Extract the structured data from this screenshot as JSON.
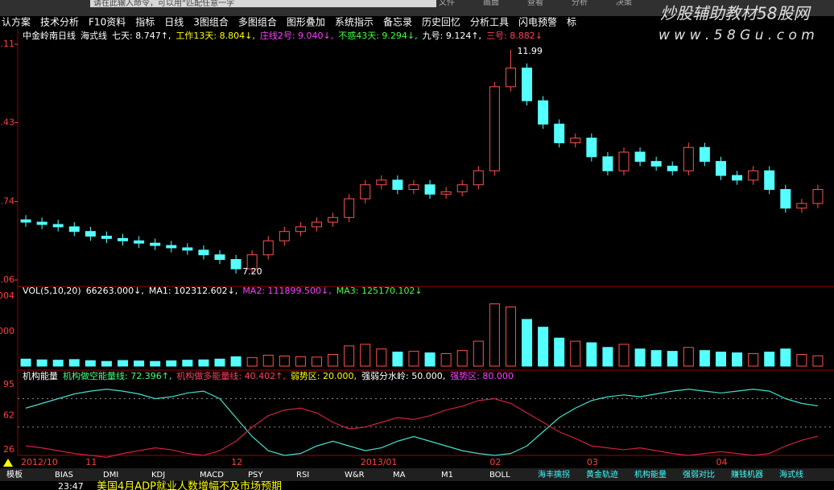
{
  "toolbar": [
    "认方案",
    "技术分析",
    "F10资料",
    "指标",
    "日线",
    "3图组合",
    "多图组合",
    "图形叠加",
    "系统指示",
    "备忘录",
    "历史回忆",
    "分析工具",
    "闪电预警",
    "标"
  ],
  "search": "请在此输入命令，可以用“匹配任意一字",
  "menu_right": [
    "文件",
    "画面",
    "查看",
    "分析",
    "决策"
  ],
  "watermark": {
    "title": "炒股辅助教材58股网",
    "url": "w w w . 5 8 G u . c o m"
  },
  "price_panel": {
    "type": "candlestick",
    "header": [
      {
        "text": "中金岭南日线",
        "color": "#ffffff"
      },
      {
        "text": "海式线",
        "color": "#ffffff"
      },
      {
        "text": "七天: 8.747↑,",
        "color": "#ffffff"
      },
      {
        "text": "工作13天: 8.804↓,",
        "color": "#ffff00"
      },
      {
        "text": "庄线2号: 9.040↓,",
        "color": "#ff40ff"
      },
      {
        "text": "不惑43天: 9.294↓,",
        "color": "#40ff40"
      },
      {
        "text": "九号: 9.124↑,",
        "color": "#ffffff"
      },
      {
        "text": "三号: 8.882↓",
        "color": "#ff4060"
      }
    ],
    "categories": [
      "2012/10",
      null,
      null,
      null,
      "11",
      null,
      null,
      null,
      null,
      null,
      null,
      null,
      null,
      "12",
      null,
      null,
      null,
      null,
      null,
      null,
      null,
      "2013/01",
      null,
      null,
      null,
      null,
      null,
      null,
      null,
      "02",
      null,
      null,
      null,
      null,
      null,
      "03",
      null,
      null,
      null,
      null,
      null,
      null,
      null,
      "04",
      null,
      null,
      null,
      null,
      null,
      null
    ],
    "open": [
      8.35,
      8.3,
      8.25,
      8.2,
      8.1,
      8.0,
      7.95,
      7.9,
      7.85,
      7.8,
      7.75,
      7.7,
      7.6,
      7.5,
      7.3,
      7.6,
      7.9,
      8.1,
      8.2,
      8.3,
      8.4,
      8.8,
      9.1,
      9.2,
      9.0,
      9.1,
      8.9,
      8.95,
      9.1,
      9.4,
      11.2,
      11.6,
      10.9,
      10.4,
      10.0,
      10.1,
      9.7,
      9.4,
      9.8,
      9.6,
      9.5,
      9.4,
      9.9,
      9.6,
      9.3,
      9.2,
      9.4,
      9.0,
      8.6,
      8.7
    ],
    "high": [
      8.45,
      8.4,
      8.35,
      8.3,
      8.2,
      8.1,
      8.05,
      8.0,
      7.95,
      7.9,
      7.85,
      7.8,
      7.7,
      7.6,
      7.7,
      8.0,
      8.2,
      8.3,
      8.4,
      8.5,
      8.9,
      9.2,
      9.3,
      9.3,
      9.2,
      9.2,
      9.05,
      9.2,
      9.5,
      11.3,
      11.99,
      11.7,
      11.0,
      10.5,
      10.2,
      10.2,
      9.8,
      9.9,
      9.9,
      9.7,
      9.6,
      10.0,
      10.0,
      9.7,
      9.4,
      9.5,
      9.5,
      9.1,
      8.8,
      9.1
    ],
    "low": [
      8.2,
      8.15,
      8.1,
      8.0,
      7.9,
      7.85,
      7.8,
      7.75,
      7.7,
      7.65,
      7.6,
      7.5,
      7.4,
      7.2,
      7.2,
      7.5,
      7.8,
      8.0,
      8.1,
      8.2,
      8.3,
      8.7,
      9.0,
      8.9,
      8.9,
      8.8,
      8.8,
      8.85,
      9.0,
      9.3,
      11.1,
      10.8,
      10.3,
      9.9,
      9.9,
      9.6,
      9.3,
      9.3,
      9.5,
      9.4,
      9.3,
      9.3,
      9.5,
      9.2,
      9.1,
      9.1,
      8.9,
      8.5,
      8.5,
      8.6
    ],
    "close": [
      8.3,
      8.25,
      8.2,
      8.1,
      8.0,
      7.95,
      7.9,
      7.85,
      7.8,
      7.75,
      7.7,
      7.6,
      7.5,
      7.3,
      7.6,
      7.9,
      8.1,
      8.2,
      8.3,
      8.4,
      8.8,
      9.1,
      9.2,
      9.0,
      9.1,
      8.9,
      8.95,
      9.1,
      9.4,
      11.2,
      11.6,
      10.9,
      10.4,
      10.0,
      10.1,
      9.7,
      9.4,
      9.8,
      9.6,
      9.5,
      9.4,
      9.9,
      9.6,
      9.3,
      9.2,
      9.4,
      9.0,
      8.6,
      8.7,
      9.0
    ],
    "ylim": [
      6.94,
      12.11
    ],
    "yticks": [
      12.11,
      10.43,
      8.74,
      7.06
    ],
    "up_color": "#ff5050",
    "down_color": "#54ffff",
    "annotations": [
      "11.99",
      "7.20"
    ]
  },
  "volume_panel": {
    "type": "bar",
    "header": [
      {
        "text": "VOL(5,10,20)",
        "color": "#ffffff"
      },
      {
        "text": "66263.000↓,",
        "color": "#ffffff"
      },
      {
        "text": "MA1: 102312.602↓,",
        "color": "#ffffff"
      },
      {
        "text": "MA2: 111899.500↓,",
        "color": "#ff40ff"
      },
      {
        "text": "MA3: 125170.102↓",
        "color": "#40ff40"
      }
    ],
    "values": [
      45000,
      40000,
      38000,
      42000,
      35000,
      30000,
      36000,
      33000,
      30000,
      34000,
      38000,
      40000,
      45000,
      60000,
      55000,
      70000,
      65000,
      60000,
      58000,
      75000,
      130000,
      140000,
      110000,
      90000,
      95000,
      85000,
      80000,
      100000,
      160000,
      400000,
      380000,
      300000,
      250000,
      180000,
      160000,
      150000,
      120000,
      140000,
      110000,
      100000,
      95000,
      120000,
      100000,
      90000,
      85000,
      80000,
      90000,
      110000,
      75000,
      66263
    ],
    "ylim": [
      0,
      450000
    ],
    "tick_labels": [
      "004",
      "000"
    ]
  },
  "energy_panel": {
    "type": "line",
    "header": [
      {
        "text": "机构能量",
        "color": "#ffffff"
      },
      {
        "text": "机构做空能量线: 72.396↑,",
        "color": "#40ff80"
      },
      {
        "text": "机构做多能量线: 40.402↑,",
        "color": "#ff4060"
      },
      {
        "text": "弱势区: 20.000,",
        "color": "#ffff00"
      },
      {
        "text": "强弱分水岭: 50.000,",
        "color": "#ffffff"
      },
      {
        "text": "强势区: 80.000",
        "color": "#ff40ff"
      }
    ],
    "series": [
      {
        "name": "机构做空能量线",
        "color": "#40e0d0",
        "values": [
          70,
          75,
          80,
          85,
          88,
          90,
          88,
          85,
          80,
          82,
          86,
          88,
          80,
          60,
          40,
          25,
          20,
          22,
          30,
          35,
          30,
          25,
          28,
          35,
          40,
          35,
          30,
          25,
          22,
          20,
          22,
          30,
          45,
          60,
          70,
          78,
          82,
          84,
          82,
          85,
          88,
          90,
          88,
          86,
          88,
          90,
          88,
          80,
          75,
          72.396
        ]
      },
      {
        "name": "机构做多能量线",
        "color": "#d02040",
        "values": [
          30,
          28,
          25,
          22,
          20,
          18,
          22,
          25,
          28,
          26,
          22,
          20,
          25,
          35,
          50,
          62,
          68,
          70,
          65,
          55,
          48,
          50,
          55,
          60,
          58,
          62,
          68,
          72,
          78,
          80,
          75,
          65,
          55,
          45,
          38,
          30,
          28,
          26,
          28,
          25,
          22,
          20,
          22,
          24,
          22,
          20,
          22,
          30,
          36,
          40.402
        ]
      }
    ],
    "ylim": [
      20,
      100
    ],
    "yticks": [
      95,
      62,
      26
    ],
    "levels": [
      80,
      50
    ]
  },
  "tabs": [
    "模板",
    "BIAS",
    "DMI",
    "KDJ",
    "MACD",
    "PSY",
    "RSI",
    "W&R",
    "MA",
    "M1",
    "BOLL",
    "海丰擒拐",
    "黄金轨迹",
    "机构能量",
    "强弱对比",
    "赚钱机器",
    "海式线"
  ],
  "status": {
    "time": "23:47",
    "news": "美国4月ADP就业人数增幅不及市场预期"
  }
}
